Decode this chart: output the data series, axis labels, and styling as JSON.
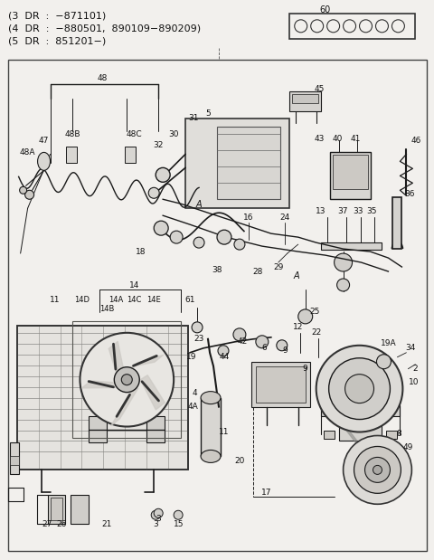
{
  "background_color": "#f2f0ed",
  "border_color": "#333333",
  "header_text_lines": [
    "(3  DR  :  −871101)",
    "(4  DR  :  −880501,  890109−890209)",
    "(5  DR  :  851201−)"
  ],
  "part60_label": "60",
  "fig_width": 4.8,
  "fig_height": 6.19,
  "dpi": 100,
  "lc": "#1a1a1a",
  "fc_light": "#e8e6e2",
  "fc_white": "#f5f3f0"
}
